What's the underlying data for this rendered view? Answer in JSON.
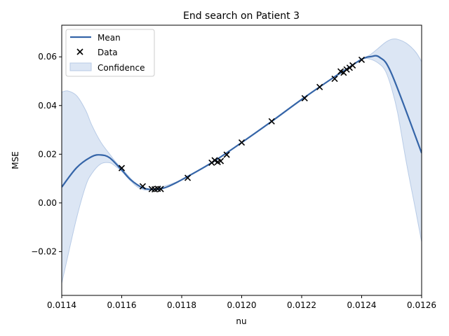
{
  "chart_data": {
    "type": "line",
    "title": "End search on Patient 3",
    "xlabel": "nu",
    "ylabel": "MSE",
    "xlim": [
      0.0114,
      0.0126
    ],
    "ylim": [
      -0.038,
      0.073
    ],
    "x_ticks": [
      "0.0114",
      "0.0116",
      "0.0118",
      "0.0120",
      "0.0122",
      "0.0124",
      "0.0126"
    ],
    "y_ticks": [
      "−0.02",
      "0.00",
      "0.02",
      "0.04",
      "0.06"
    ],
    "grid": false,
    "legend_position": "top-left",
    "legend": [
      {
        "label": "Mean",
        "kind": "line"
      },
      {
        "label": "Data",
        "kind": "marker-x"
      },
      {
        "label": "Confidence",
        "kind": "patch"
      }
    ],
    "colors": {
      "mean": "#3565a8",
      "confidence": "#dce6f4",
      "confidence_edge": "#b8cbe6",
      "data": "#000000"
    },
    "mean": {
      "x": [
        0.0114,
        0.01145,
        0.0115,
        0.01153,
        0.01156,
        0.0116,
        0.01163,
        0.01167,
        0.0117,
        0.01172,
        0.01175,
        0.0118,
        0.0119,
        0.012,
        0.0121,
        0.0122,
        0.0123,
        0.01235,
        0.0124,
        0.01243,
        0.01246,
        0.0125,
        0.0126
      ],
      "y": [
        0.0065,
        0.0145,
        0.019,
        0.0197,
        0.0185,
        0.0135,
        0.0095,
        0.0062,
        0.0055,
        0.0056,
        0.0065,
        0.0095,
        0.0165,
        0.0248,
        0.0335,
        0.0425,
        0.051,
        0.055,
        0.059,
        0.0601,
        0.0598,
        0.053,
        0.0205
      ]
    },
    "confidence": {
      "x": [
        0.0114,
        0.01142,
        0.01145,
        0.01148,
        0.0115,
        0.01153,
        0.01156,
        0.01158,
        0.0116,
        0.01163,
        0.01166,
        0.0117,
        0.0118,
        0.0119,
        0.012,
        0.0121,
        0.0122,
        0.0123,
        0.01235,
        0.0124,
        0.01243,
        0.01246,
        0.01248,
        0.0125,
        0.01252,
        0.01255,
        0.01258,
        0.0126
      ],
      "upper": [
        0.0455,
        0.046,
        0.044,
        0.038,
        0.032,
        0.025,
        0.02,
        0.0168,
        0.0142,
        0.01,
        0.0066,
        0.0055,
        0.0095,
        0.0165,
        0.0248,
        0.0335,
        0.0425,
        0.051,
        0.055,
        0.059,
        0.061,
        0.064,
        0.066,
        0.0672,
        0.0672,
        0.0655,
        0.062,
        0.058
      ],
      "lower": [
        -0.033,
        -0.022,
        -0.006,
        0.007,
        0.012,
        0.016,
        0.0165,
        0.015,
        0.013,
        0.009,
        0.006,
        0.0055,
        0.0095,
        0.0165,
        0.0248,
        0.0335,
        0.0425,
        0.051,
        0.055,
        0.059,
        0.059,
        0.057,
        0.054,
        0.047,
        0.037,
        0.016,
        -0.003,
        -0.016
      ]
    },
    "data_points": {
      "x": [
        0.0116,
        0.01167,
        0.0117,
        0.01171,
        0.01172,
        0.01173,
        0.01182,
        0.0119,
        0.01191,
        0.01192,
        0.01193,
        0.01195,
        0.012,
        0.0121,
        0.01221,
        0.01226,
        0.01231,
        0.01233,
        0.01234,
        0.01235,
        0.01236,
        0.01237,
        0.0124
      ],
      "y": [
        0.0143,
        0.0068,
        0.0057,
        0.0056,
        0.0058,
        0.0057,
        0.0103,
        0.0165,
        0.0175,
        0.0168,
        0.0172,
        0.0198,
        0.0248,
        0.0335,
        0.043,
        0.0476,
        0.051,
        0.054,
        0.0535,
        0.0548,
        0.0555,
        0.0565,
        0.0588
      ]
    }
  }
}
